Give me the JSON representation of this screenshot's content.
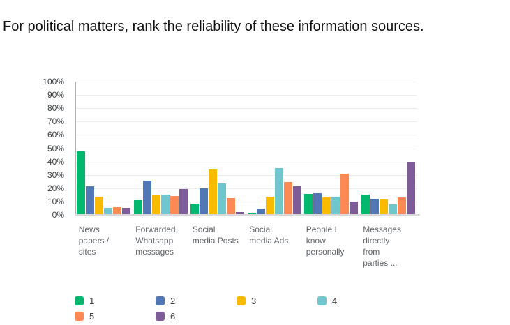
{
  "title": "For political matters, rank the reliability of these information sources.",
  "chart_data": {
    "type": "bar",
    "title": "For political matters, rank the reliability of these information sources.",
    "categories": [
      [
        "News",
        "papers /",
        "sites"
      ],
      [
        "Forwarded",
        "Whatsapp",
        "messages"
      ],
      [
        "Social",
        "media Posts"
      ],
      [
        "Social",
        "media Ads"
      ],
      [
        "People I",
        "know",
        "personally"
      ],
      [
        "Messages",
        "directly",
        "from",
        "parties ..."
      ]
    ],
    "series": [
      {
        "name": "1",
        "color": "#00b86e",
        "values": [
          47.5,
          11,
          8.5,
          1.5,
          15.5,
          15
        ]
      },
      {
        "name": "2",
        "color": "#5178b5",
        "values": [
          21.5,
          25.5,
          20,
          4.5,
          16.5,
          12
        ]
      },
      {
        "name": "3",
        "color": "#f8bb00",
        "values": [
          13.5,
          14.5,
          34,
          13.5,
          13,
          11.5
        ]
      },
      {
        "name": "4",
        "color": "#6fc7cd",
        "values": [
          5,
          15,
          23.5,
          35,
          13.5,
          8
        ]
      },
      {
        "name": "5",
        "color": "#fc8a55",
        "values": [
          6,
          14,
          12.5,
          24.5,
          31,
          13
        ]
      },
      {
        "name": "6",
        "color": "#7d5c98",
        "values": [
          5,
          19.5,
          2,
          21.5,
          10,
          40
        ]
      }
    ],
    "y_ticks": [
      "100%",
      "90%",
      "80%",
      "70%",
      "60%",
      "50%",
      "40%",
      "30%",
      "20%",
      "10%",
      "0%"
    ],
    "ylim": [
      0,
      100
    ],
    "grid": true,
    "legend_position": "bottom",
    "legend_columns": 4,
    "colors": {
      "gridline": "#ececec",
      "axis_line": "#b0b0b0",
      "baseline": "#d9d9d9",
      "tick_text": "#3c4043",
      "category_text": "#5f6368"
    }
  }
}
